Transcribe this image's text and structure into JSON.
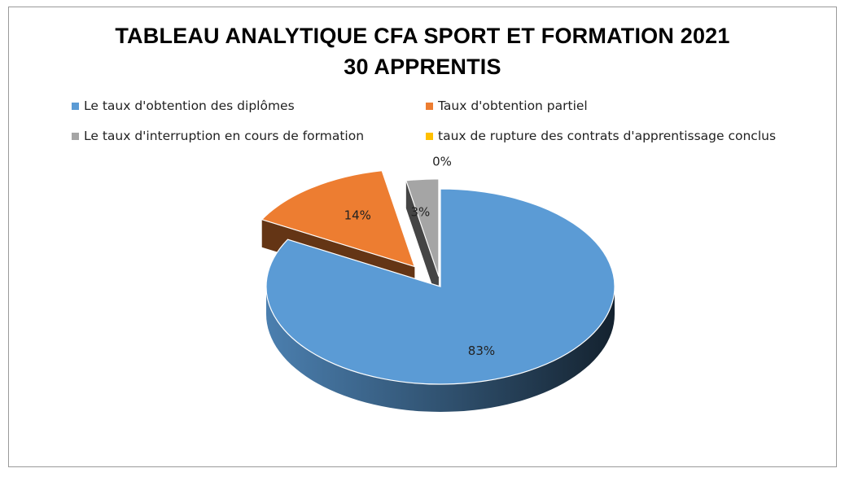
{
  "chart_data": {
    "type": "pie",
    "style": "3d-exploded",
    "title": "TABLEAU ANALYTIQUE CFA SPORT ET FORMATION 2021",
    "subtitle": "30 APPRENTIS",
    "legend_position": "top",
    "categories": [
      "Le taux d'obtention des diplômes",
      "Taux d'obtention partiel",
      "Le taux d'interruption en cours de formation",
      "taux de rupture des contrats d'apprentissage conclus"
    ],
    "values": [
      83,
      14,
      3,
      0
    ],
    "data_labels": [
      "83%",
      "14%",
      "3%",
      "0%"
    ],
    "colors": [
      "#5b9bd5",
      "#ed7d31",
      "#a5a5a5",
      "#ffc000"
    ]
  }
}
